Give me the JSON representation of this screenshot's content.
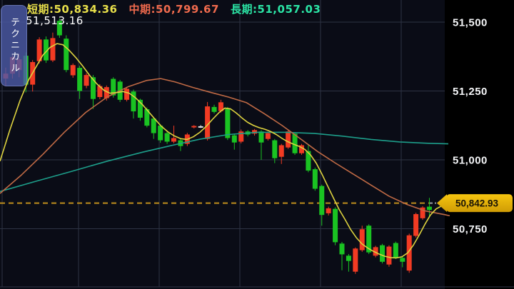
{
  "header": {
    "items": [
      {
        "id": "short",
        "text": "短期:50,834.36",
        "color": "#e8df4a"
      },
      {
        "id": "mid",
        "text": "中期:50,799.67",
        "color": "#ef6a4d"
      },
      {
        "id": "long",
        "text": "長期:51,057.03",
        "color": "#2be3a4"
      }
    ]
  },
  "high_label": "51,513.16",
  "technical_button": {
    "label": "テクニカル"
  },
  "price_badge": {
    "text": "50,842.93",
    "fill_top": "#f6c50f",
    "fill_bottom": "#cf9c05",
    "text_color": "#191306"
  },
  "chart_data": {
    "type": "candlestick",
    "convention": "red=bullish(陽線), green=bearish(陰線), Japanese style",
    "title": "",
    "y_axis": {
      "ticks": [
        51500,
        51250,
        51000,
        50750
      ],
      "tick_labels": [
        "51,500",
        "51,250",
        "51,000",
        "50,750"
      ],
      "current_price": 50842.93,
      "session_high": 51513.16
    },
    "colors": {
      "up": "#f23b23",
      "down": "#1ac322",
      "doji": "#e9e9e9",
      "grid": "#2e3344",
      "dashed": "#c18f1c",
      "gray_tick": "#9aa0a8",
      "bg": "#0a0c16",
      "axis_bg": "#000000",
      "label": "#f5f6f8"
    },
    "candles": [
      [
        51295,
        51335,
        51268,
        51313
      ],
      [
        51313,
        51380,
        51295,
        51373
      ],
      [
        51326,
        51385,
        51300,
        51365
      ],
      [
        51378,
        51390,
        51245,
        51273
      ],
      [
        51273,
        51362,
        51248,
        51355
      ],
      [
        51358,
        51445,
        51350,
        51437
      ],
      [
        51437,
        51448,
        51352,
        51361
      ],
      [
        51361,
        51462,
        51355,
        51442
      ],
      [
        51505,
        51513,
        51443,
        51452
      ],
      [
        51440,
        51452,
        51318,
        51326
      ],
      [
        51307,
        51350,
        51298,
        51344
      ],
      [
        51334,
        51342,
        51221,
        51250
      ],
      [
        51269,
        51315,
        51260,
        51308
      ],
      [
        51300,
        51308,
        51185,
        51221
      ],
      [
        51228,
        51275,
        51220,
        51268
      ],
      [
        51224,
        51270,
        51215,
        51264
      ],
      [
        51294,
        51300,
        51226,
        51234
      ],
      [
        51284,
        51290,
        51210,
        51218
      ],
      [
        51218,
        51265,
        51212,
        51258
      ],
      [
        51248,
        51255,
        51150,
        51176
      ],
      [
        51218,
        51222,
        51142,
        51153
      ],
      [
        51184,
        51190,
        51118,
        51124
      ],
      [
        51150,
        51155,
        51076,
        51097
      ],
      [
        51124,
        51130,
        51062,
        51071
      ],
      [
        51097,
        51102,
        51058,
        51066
      ],
      [
        51066,
        51124,
        51060,
        51079
      ],
      [
        51071,
        51078,
        51032,
        51050
      ],
      [
        51058,
        51098,
        51050,
        51092
      ],
      [
        51120,
        51126,
        51114,
        51123
      ],
      [
        51121,
        51126,
        51116,
        51122,
        "w"
      ],
      [
        51076,
        51210,
        51070,
        51194
      ],
      [
        51192,
        51200,
        51168,
        51174
      ],
      [
        51177,
        51218,
        51172,
        51209
      ],
      [
        51185,
        51192,
        51072,
        51079
      ],
      [
        51089,
        51095,
        51037,
        51063
      ],
      [
        51066,
        51110,
        51060,
        51103
      ],
      [
        51103,
        51108,
        51085,
        51092
      ],
      [
        51095,
        51112,
        51088,
        51108
      ],
      [
        51103,
        51108,
        51000,
        51063
      ],
      [
        51076,
        51102,
        51070,
        51097
      ],
      [
        51071,
        51076,
        50988,
        51006
      ],
      [
        51011,
        51058,
        50985,
        51053
      ],
      [
        51045,
        51110,
        51040,
        51103
      ],
      [
        51095,
        51100,
        51018,
        51024
      ],
      [
        51024,
        51058,
        51018,
        51053
      ],
      [
        51032,
        51056,
        50955,
        50961
      ],
      [
        50966,
        50972,
        50888,
        50895
      ],
      [
        50905,
        50910,
        50761,
        50800
      ],
      [
        50806,
        50830,
        50798,
        50824
      ],
      [
        50822,
        50828,
        50690,
        50701
      ],
      [
        50696,
        50702,
        50599,
        50657
      ],
      [
        50652,
        50658,
        50594,
        50633
      ],
      [
        50594,
        50682,
        50586,
        50678
      ],
      [
        50672,
        50761,
        50666,
        50748
      ],
      [
        50761,
        50766,
        50658,
        50664
      ],
      [
        50652,
        50688,
        50646,
        50683
      ],
      [
        50690,
        50695,
        50624,
        50630
      ],
      [
        50620,
        50690,
        50612,
        50685
      ],
      [
        50698,
        50703,
        50640,
        50646
      ],
      [
        50644,
        50650,
        50610,
        50630
      ],
      [
        50598,
        50732,
        50590,
        50726
      ],
      [
        50724,
        50808,
        50718,
        50803
      ],
      [
        50788,
        50832,
        50782,
        50827
      ],
      [
        50830,
        50862,
        50796,
        50818
      ]
    ],
    "moving_averages": {
      "short": {
        "label": "短期",
        "current": 50834.36,
        "color": "#ded33f",
        "points": [
          [
            0,
            50995
          ],
          [
            14,
            51110
          ],
          [
            28,
            51215
          ],
          [
            40,
            51290
          ],
          [
            50,
            51335
          ],
          [
            60,
            51380
          ],
          [
            70,
            51408
          ],
          [
            80,
            51422
          ],
          [
            88,
            51418
          ],
          [
            96,
            51400
          ],
          [
            106,
            51372
          ],
          [
            116,
            51340
          ],
          [
            126,
            51305
          ],
          [
            136,
            51275
          ],
          [
            146,
            51252
          ],
          [
            154,
            51242
          ],
          [
            163,
            51244
          ],
          [
            172,
            51248
          ],
          [
            181,
            51242
          ],
          [
            190,
            51225
          ],
          [
            199,
            51202
          ],
          [
            208,
            51175
          ],
          [
            217,
            51148
          ],
          [
            226,
            51122
          ],
          [
            235,
            51102
          ],
          [
            244,
            51087
          ],
          [
            253,
            51077
          ],
          [
            262,
            51074
          ],
          [
            271,
            51084
          ],
          [
            280,
            51100
          ],
          [
            289,
            51122
          ],
          [
            298,
            51148
          ],
          [
            307,
            51172
          ],
          [
            315,
            51188
          ],
          [
            323,
            51185
          ],
          [
            331,
            51170
          ],
          [
            339,
            51152
          ],
          [
            347,
            51136
          ],
          [
            355,
            51125
          ],
          [
            363,
            51117
          ],
          [
            371,
            51111
          ],
          [
            379,
            51103
          ],
          [
            387,
            51092
          ],
          [
            395,
            51078
          ],
          [
            403,
            51066
          ],
          [
            411,
            51057
          ],
          [
            419,
            51049
          ],
          [
            427,
            51038
          ],
          [
            435,
            51018
          ],
          [
            443,
            50988
          ],
          [
            451,
            50948
          ],
          [
            459,
            50905
          ],
          [
            467,
            50862
          ],
          [
            475,
            50820
          ],
          [
            483,
            50785
          ],
          [
            491,
            50748
          ],
          [
            499,
            50718
          ],
          [
            507,
            50695
          ],
          [
            515,
            50680
          ],
          [
            523,
            50668
          ],
          [
            531,
            50658
          ],
          [
            539,
            50650
          ],
          [
            547,
            50645
          ],
          [
            555,
            50644
          ],
          [
            563,
            50648
          ],
          [
            571,
            50662
          ],
          [
            579,
            50690
          ],
          [
            587,
            50726
          ],
          [
            595,
            50765
          ],
          [
            603,
            50800
          ],
          [
            611,
            50822
          ],
          [
            619,
            50833
          ],
          [
            628,
            50836
          ]
        ]
      },
      "mid": {
        "label": "中期",
        "current": 50799.67,
        "color": "#c06a45",
        "points": [
          [
            0,
            50878
          ],
          [
            30,
            50945
          ],
          [
            60,
            51020
          ],
          [
            90,
            51100
          ],
          [
            120,
            51172
          ],
          [
            150,
            51228
          ],
          [
            180,
            51266
          ],
          [
            205,
            51288
          ],
          [
            225,
            51295
          ],
          [
            245,
            51283
          ],
          [
            270,
            51263
          ],
          [
            295,
            51245
          ],
          [
            320,
            51228
          ],
          [
            345,
            51208
          ],
          [
            370,
            51168
          ],
          [
            395,
            51125
          ],
          [
            420,
            51078
          ],
          [
            445,
            51030
          ],
          [
            470,
            50988
          ],
          [
            495,
            50948
          ],
          [
            520,
            50908
          ],
          [
            545,
            50868
          ],
          [
            570,
            50838
          ],
          [
            595,
            50815
          ],
          [
            623,
            50801
          ],
          [
            630,
            50797
          ]
        ]
      },
      "long": {
        "label": "長期",
        "current": 51057.03,
        "color": "#1d9e8a",
        "points": [
          [
            0,
            50885
          ],
          [
            50,
            50922
          ],
          [
            100,
            50958
          ],
          [
            150,
            50995
          ],
          [
            200,
            51028
          ],
          [
            240,
            51052
          ],
          [
            280,
            51075
          ],
          [
            320,
            51092
          ],
          [
            360,
            51100
          ],
          [
            400,
            51100
          ],
          [
            440,
            51096
          ],
          [
            480,
            51086
          ],
          [
            520,
            51074
          ],
          [
            560,
            51065
          ],
          [
            600,
            51060
          ],
          [
            628,
            51058
          ]
        ]
      }
    }
  }
}
